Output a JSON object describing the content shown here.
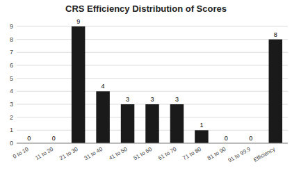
{
  "chart_data": {
    "type": "bar",
    "title": "CRS Efficiency Distribution of Scores",
    "categories": [
      "0 to 10",
      "11 to 20",
      "21 to 30",
      "31 to 40",
      "41 to 50",
      "51 to 60",
      "61 to 70",
      "71 to 80",
      "81 to 90",
      "91 to 99.9",
      "Efficiency"
    ],
    "values": [
      0,
      0,
      9,
      4,
      3,
      3,
      3,
      1,
      0,
      0,
      8
    ],
    "color": "#1a1a1a",
    "ylim": [
      0,
      9
    ],
    "yticks": [
      0,
      1,
      2,
      3,
      4,
      5,
      6,
      7,
      8,
      9
    ],
    "grid": true,
    "data_labels": true
  }
}
